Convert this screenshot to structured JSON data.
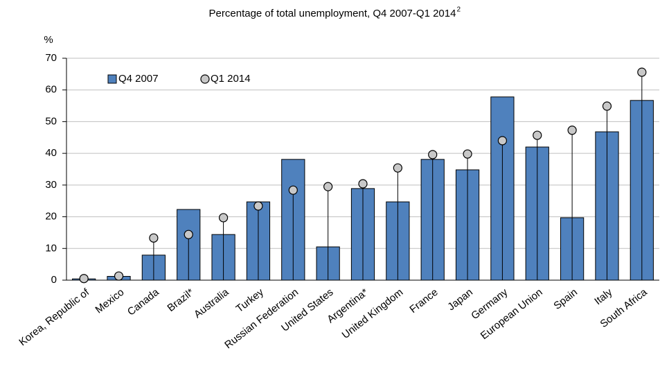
{
  "chart_data": {
    "type": "bar_dot",
    "title": "Percentage of total unemployment, Q4 2007-Q1 2014",
    "title_note": "2",
    "y_label": "%",
    "categories": [
      "Korea, Republic of",
      "Mexico",
      "Canada",
      "Brazil*",
      "Australia",
      "Turkey",
      "Russian Federation",
      "United States",
      "Argentina*",
      "United Kingdom",
      "France",
      "Japan",
      "Germany",
      "European Union",
      "Spain",
      "Italy",
      "South Africa"
    ],
    "series": [
      {
        "name": "Q4 2007",
        "color": "#4f81bd",
        "values": [
          0.4,
          1.2,
          7.9,
          22.3,
          14.4,
          24.7,
          38.1,
          10.5,
          28.9,
          24.7,
          38.1,
          34.8,
          57.8,
          42.0,
          19.7,
          46.8,
          56.7
        ]
      },
      {
        "name": "Q1 2014",
        "color": "#c8c8c8",
        "values": [
          0.5,
          1.3,
          13.3,
          14.4,
          19.7,
          23.4,
          28.4,
          29.5,
          30.4,
          35.4,
          39.6,
          39.8,
          44.0,
          45.7,
          47.3,
          54.9,
          65.6
        ]
      }
    ],
    "ylim": [
      0,
      70
    ],
    "yticks": [
      0,
      10,
      20,
      30,
      40,
      50,
      60,
      70
    ],
    "grid": true,
    "legend": "top-left"
  }
}
